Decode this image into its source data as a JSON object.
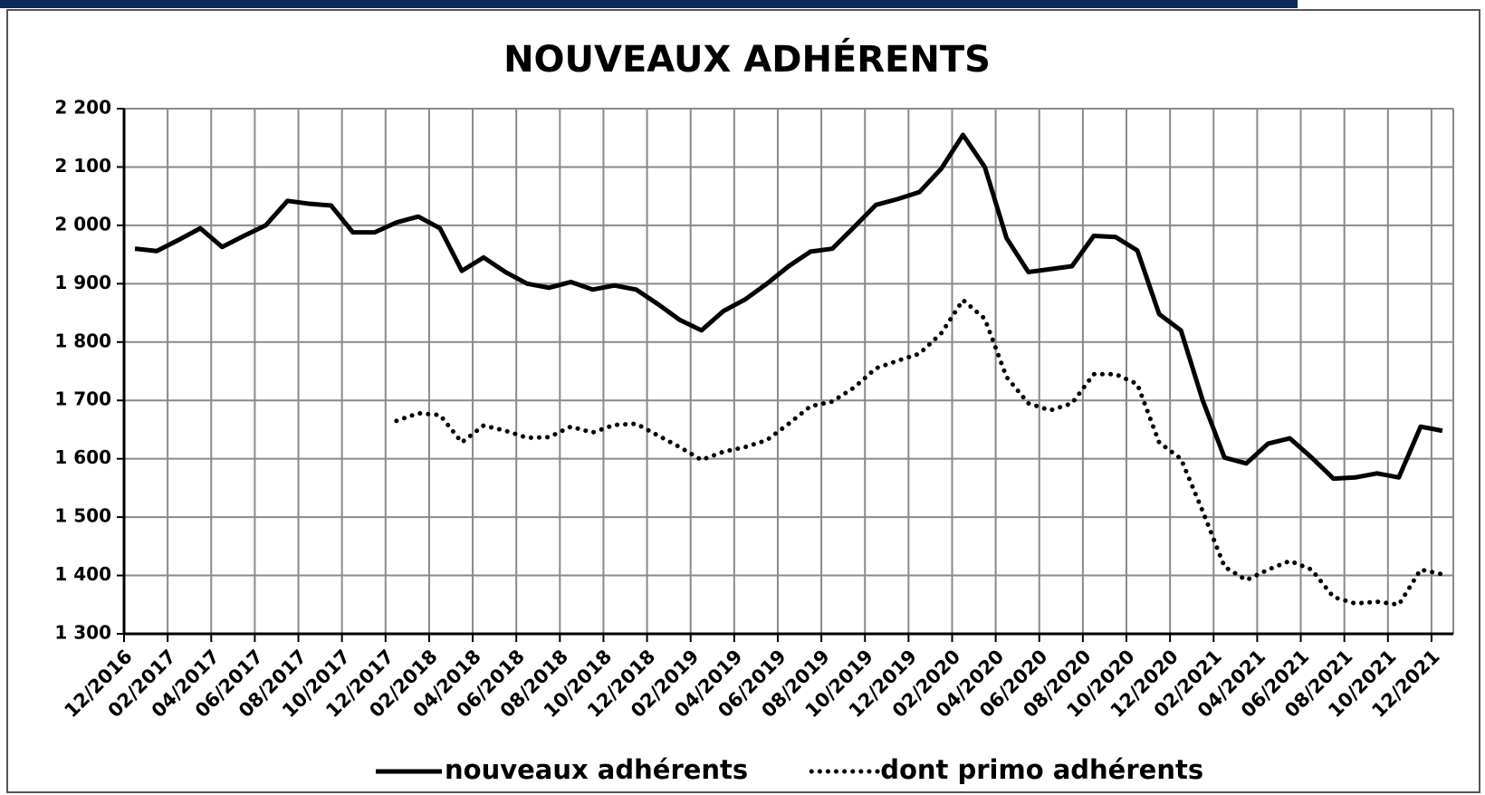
{
  "chart_data": {
    "type": "line",
    "title": "NOUVEAUX ADHÉRENTS",
    "categories": [
      "12/2016",
      null,
      "02/2017",
      null,
      "04/2017",
      null,
      "06/2017",
      null,
      "08/2017",
      null,
      "10/2017",
      null,
      "12/2017",
      null,
      "02/2018",
      null,
      "04/2018",
      null,
      "06/2018",
      null,
      "08/2018",
      null,
      "10/2018",
      null,
      "12/2018",
      null,
      "02/2019",
      null,
      "04/2019",
      null,
      "06/2019",
      null,
      "08/2019",
      null,
      "10/2019",
      null,
      "12/2019",
      null,
      "02/2020",
      null,
      "04/2020",
      null,
      "06/2020",
      null,
      "08/2020",
      null,
      "10/2020",
      null,
      "12/2020",
      null,
      "02/2021",
      null,
      "04/2021",
      null,
      "06/2021",
      null,
      "08/2021",
      null,
      "10/2021",
      null,
      "12/2021"
    ],
    "series": [
      {
        "name": "nouveaux adhérents",
        "color": "#000000",
        "style": "solid",
        "values": [
          1960,
          1956,
          1975,
          1995,
          1963,
          1982,
          2000,
          2042,
          2037,
          2034,
          1988,
          1988,
          2005,
          2015,
          1995,
          1922,
          1945,
          1920,
          1900,
          1893,
          1903,
          1890,
          1897,
          1890,
          1865,
          1838,
          1820,
          1853,
          1873,
          1900,
          1930,
          1955,
          1960,
          1997,
          2035,
          2045,
          2057,
          2097,
          2155,
          2100,
          1978,
          1920,
          1925,
          1930,
          1982,
          1980,
          1957,
          1848,
          1820,
          1700,
          1602,
          1592,
          1626,
          1635,
          1602,
          1566,
          1568,
          1575,
          1568,
          1655,
          1648
        ]
      },
      {
        "name": "dont primo adhérents",
        "color": "#000000",
        "style": "dotted",
        "values": [
          null,
          null,
          null,
          null,
          null,
          null,
          null,
          null,
          null,
          null,
          null,
          null,
          1665,
          1678,
          1675,
          1628,
          1657,
          1648,
          1636,
          1637,
          1655,
          1645,
          1658,
          1660,
          1640,
          1620,
          1598,
          1612,
          1620,
          1632,
          1660,
          1690,
          1698,
          1722,
          1755,
          1768,
          1780,
          1815,
          1872,
          1840,
          1740,
          1695,
          1683,
          1695,
          1745,
          1745,
          1728,
          1628,
          1600,
          1510,
          1415,
          1392,
          1410,
          1425,
          1410,
          1363,
          1352,
          1355,
          1350,
          1410,
          1402
        ]
      }
    ],
    "ylim": [
      1300,
      2200
    ],
    "yticks": [
      {
        "value": 1300,
        "label": "1 300"
      },
      {
        "value": 1400,
        "label": "1 400"
      },
      {
        "value": 1500,
        "label": "1 500"
      },
      {
        "value": 1600,
        "label": "1 600"
      },
      {
        "value": 1700,
        "label": "1 700"
      },
      {
        "value": 1800,
        "label": "1 800"
      },
      {
        "value": 1900,
        "label": "1 900"
      },
      {
        "value": 2000,
        "label": "2 000"
      },
      {
        "value": 2100,
        "label": "2 100"
      },
      {
        "value": 2200,
        "label": "2 200"
      }
    ],
    "grid": true
  }
}
